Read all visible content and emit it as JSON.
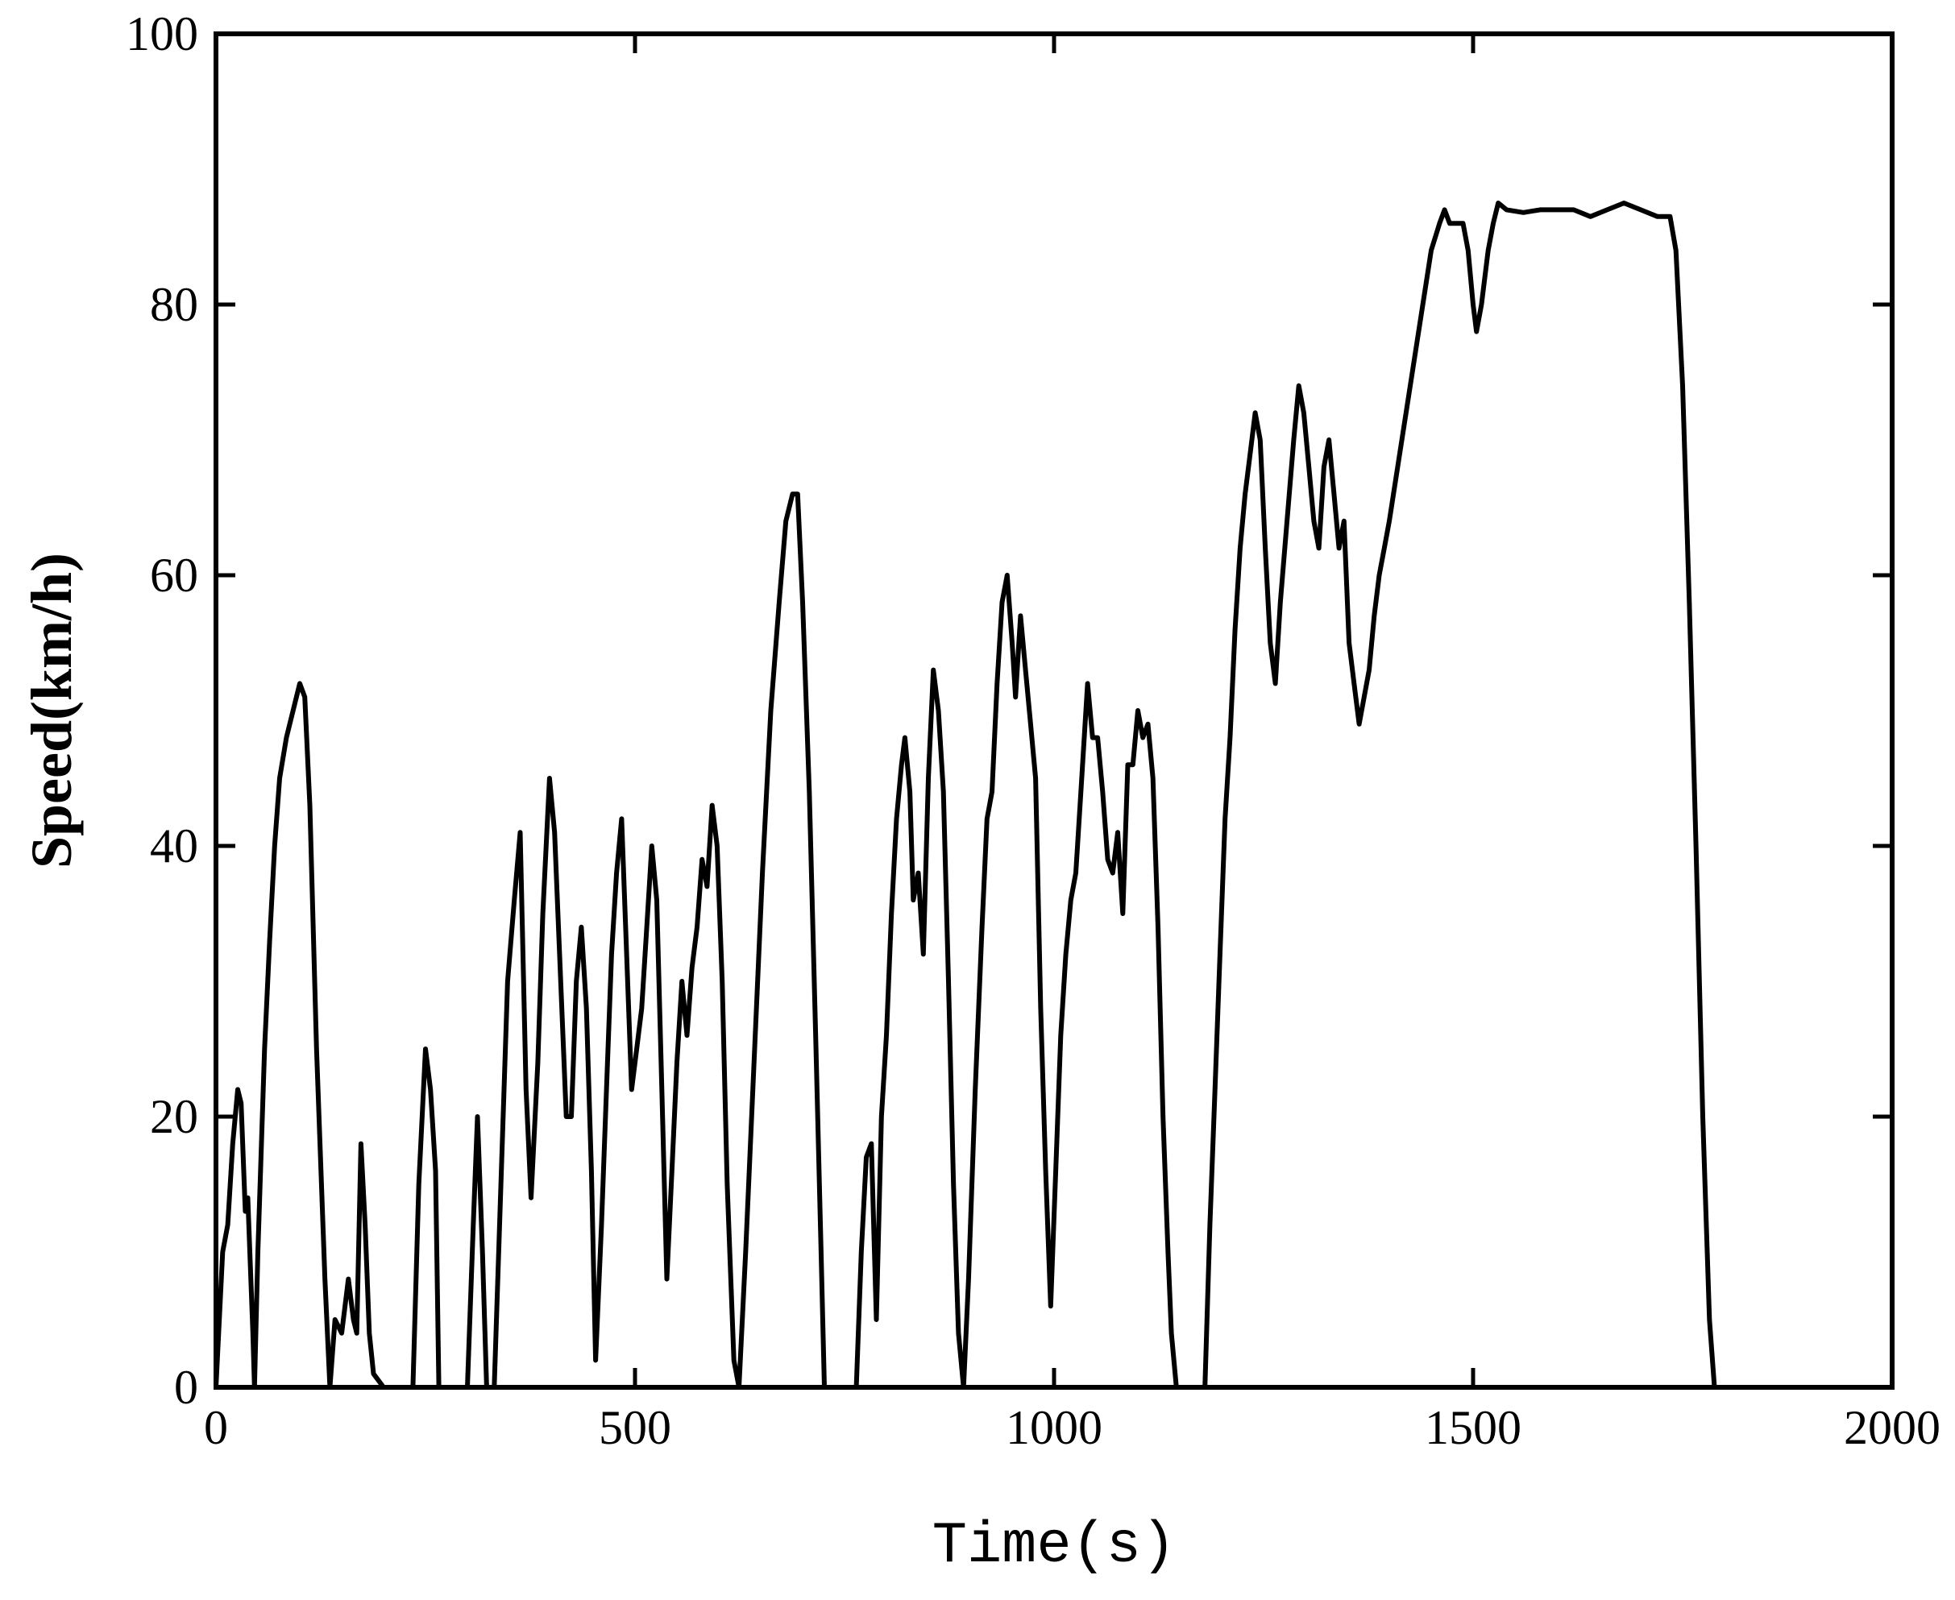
{
  "chart_data": {
    "type": "line",
    "title": "",
    "xlabel": "Time(s)",
    "ylabel": "Speed(km/h)",
    "xlim": [
      0,
      2000
    ],
    "ylim": [
      0,
      100
    ],
    "x_ticks": [
      0,
      500,
      1000,
      1500,
      2000
    ],
    "y_ticks": [
      0,
      20,
      40,
      60,
      80,
      100
    ],
    "x_tick_labels": [
      "0",
      "500",
      "1000",
      "1500",
      "2000"
    ],
    "y_tick_labels": [
      "0",
      "20",
      "40",
      "60",
      "80",
      "100"
    ],
    "grid": false,
    "legend": "none",
    "line_color": "#000000",
    "series": [
      {
        "points": [
          [
            0,
            0
          ],
          [
            8,
            10
          ],
          [
            14,
            12
          ],
          [
            20,
            18
          ],
          [
            26,
            22
          ],
          [
            30,
            21
          ],
          [
            35,
            13
          ],
          [
            38,
            14
          ],
          [
            44,
            4
          ],
          [
            46,
            0
          ],
          [
            50,
            10
          ],
          [
            58,
            25
          ],
          [
            64,
            33
          ],
          [
            70,
            40
          ],
          [
            76,
            45
          ],
          [
            84,
            48
          ],
          [
            92,
            50
          ],
          [
            100,
            52
          ],
          [
            106,
            51
          ],
          [
            112,
            43
          ],
          [
            120,
            25
          ],
          [
            130,
            8
          ],
          [
            136,
            0
          ],
          [
            142,
            5
          ],
          [
            150,
            4
          ],
          [
            158,
            8
          ],
          [
            164,
            5
          ],
          [
            168,
            4
          ],
          [
            173,
            18
          ],
          [
            178,
            12
          ],
          [
            183,
            4
          ],
          [
            188,
            1
          ],
          [
            200,
            0
          ],
          [
            235,
            0
          ],
          [
            242,
            15
          ],
          [
            250,
            25
          ],
          [
            256,
            22
          ],
          [
            262,
            16
          ],
          [
            266,
            0
          ],
          [
            300,
            0
          ],
          [
            307,
            12
          ],
          [
            312,
            20
          ],
          [
            318,
            10
          ],
          [
            323,
            0
          ],
          [
            332,
            0
          ],
          [
            340,
            15
          ],
          [
            348,
            30
          ],
          [
            356,
            36
          ],
          [
            363,
            41
          ],
          [
            370,
            22
          ],
          [
            376,
            14
          ],
          [
            384,
            24
          ],
          [
            390,
            35
          ],
          [
            398,
            45
          ],
          [
            404,
            41
          ],
          [
            410,
            32
          ],
          [
            418,
            20
          ],
          [
            424,
            20
          ],
          [
            430,
            30
          ],
          [
            436,
            34
          ],
          [
            442,
            28
          ],
          [
            448,
            16
          ],
          [
            453,
            2
          ],
          [
            460,
            12
          ],
          [
            466,
            22
          ],
          [
            472,
            32
          ],
          [
            478,
            38
          ],
          [
            484,
            42
          ],
          [
            490,
            32
          ],
          [
            496,
            22
          ],
          [
            502,
            25
          ],
          [
            508,
            28
          ],
          [
            514,
            34
          ],
          [
            520,
            40
          ],
          [
            526,
            36
          ],
          [
            532,
            22
          ],
          [
            538,
            8
          ],
          [
            544,
            16
          ],
          [
            550,
            24
          ],
          [
            556,
            30
          ],
          [
            562,
            26
          ],
          [
            568,
            31
          ],
          [
            574,
            34
          ],
          [
            580,
            39
          ],
          [
            586,
            37
          ],
          [
            592,
            43
          ],
          [
            598,
            40
          ],
          [
            604,
            30
          ],
          [
            610,
            15
          ],
          [
            618,
            2
          ],
          [
            624,
            0
          ],
          [
            632,
            10
          ],
          [
            642,
            24
          ],
          [
            652,
            38
          ],
          [
            662,
            50
          ],
          [
            672,
            58
          ],
          [
            680,
            64
          ],
          [
            688,
            66
          ],
          [
            694,
            66
          ],
          [
            700,
            58
          ],
          [
            708,
            44
          ],
          [
            716,
            25
          ],
          [
            722,
            10
          ],
          [
            726,
            0
          ],
          [
            764,
            0
          ],
          [
            770,
            10
          ],
          [
            776,
            17
          ],
          [
            782,
            18
          ],
          [
            788,
            5
          ],
          [
            794,
            20
          ],
          [
            800,
            26
          ],
          [
            806,
            35
          ],
          [
            812,
            42
          ],
          [
            818,
            46
          ],
          [
            822,
            48
          ],
          [
            828,
            44
          ],
          [
            832,
            36
          ],
          [
            838,
            38
          ],
          [
            844,
            32
          ],
          [
            850,
            45
          ],
          [
            856,
            53
          ],
          [
            862,
            50
          ],
          [
            868,
            44
          ],
          [
            874,
            30
          ],
          [
            880,
            15
          ],
          [
            886,
            4
          ],
          [
            892,
            0
          ],
          [
            898,
            8
          ],
          [
            906,
            22
          ],
          [
            914,
            34
          ],
          [
            920,
            42
          ],
          [
            926,
            44
          ],
          [
            932,
            52
          ],
          [
            938,
            58
          ],
          [
            944,
            60
          ],
          [
            950,
            55
          ],
          [
            954,
            51
          ],
          [
            960,
            57
          ],
          [
            966,
            53
          ],
          [
            972,
            49
          ],
          [
            978,
            45
          ],
          [
            984,
            28
          ],
          [
            990,
            16
          ],
          [
            996,
            6
          ],
          [
            1002,
            16
          ],
          [
            1008,
            26
          ],
          [
            1014,
            32
          ],
          [
            1020,
            36
          ],
          [
            1026,
            38
          ],
          [
            1032,
            44
          ],
          [
            1040,
            52
          ],
          [
            1046,
            48
          ],
          [
            1052,
            48
          ],
          [
            1058,
            44
          ],
          [
            1064,
            39
          ],
          [
            1070,
            38
          ],
          [
            1076,
            41
          ],
          [
            1082,
            35
          ],
          [
            1088,
            46
          ],
          [
            1094,
            46
          ],
          [
            1100,
            50
          ],
          [
            1106,
            48
          ],
          [
            1112,
            49
          ],
          [
            1118,
            45
          ],
          [
            1124,
            34
          ],
          [
            1130,
            20
          ],
          [
            1136,
            10
          ],
          [
            1140,
            4
          ],
          [
            1146,
            0
          ],
          [
            1180,
            0
          ],
          [
            1186,
            12
          ],
          [
            1192,
            22
          ],
          [
            1198,
            32
          ],
          [
            1204,
            42
          ],
          [
            1210,
            48
          ],
          [
            1216,
            56
          ],
          [
            1222,
            62
          ],
          [
            1228,
            66
          ],
          [
            1234,
            69
          ],
          [
            1240,
            72
          ],
          [
            1246,
            70
          ],
          [
            1252,
            62
          ],
          [
            1258,
            55
          ],
          [
            1264,
            52
          ],
          [
            1270,
            58
          ],
          [
            1278,
            64
          ],
          [
            1286,
            70
          ],
          [
            1292,
            74
          ],
          [
            1298,
            72
          ],
          [
            1304,
            68
          ],
          [
            1310,
            64
          ],
          [
            1316,
            62
          ],
          [
            1322,
            68
          ],
          [
            1328,
            70
          ],
          [
            1334,
            66
          ],
          [
            1340,
            62
          ],
          [
            1346,
            64
          ],
          [
            1352,
            55
          ],
          [
            1358,
            52
          ],
          [
            1364,
            49
          ],
          [
            1370,
            51
          ],
          [
            1376,
            53
          ],
          [
            1382,
            57
          ],
          [
            1388,
            60
          ],
          [
            1394,
            62
          ],
          [
            1400,
            64
          ],
          [
            1410,
            68
          ],
          [
            1420,
            72
          ],
          [
            1430,
            76
          ],
          [
            1440,
            80
          ],
          [
            1450,
            84
          ],
          [
            1460,
            86
          ],
          [
            1466,
            87
          ],
          [
            1472,
            86
          ],
          [
            1480,
            86
          ],
          [
            1488,
            86
          ],
          [
            1494,
            84
          ],
          [
            1500,
            80
          ],
          [
            1504,
            78
          ],
          [
            1510,
            80
          ],
          [
            1518,
            84
          ],
          [
            1524,
            86
          ],
          [
            1530,
            87.5
          ],
          [
            1540,
            87
          ],
          [
            1560,
            86.8
          ],
          [
            1580,
            87
          ],
          [
            1600,
            87
          ],
          [
            1620,
            87
          ],
          [
            1640,
            86.5
          ],
          [
            1660,
            87
          ],
          [
            1680,
            87.5
          ],
          [
            1700,
            87
          ],
          [
            1720,
            86.5
          ],
          [
            1735,
            86.5
          ],
          [
            1742,
            84
          ],
          [
            1750,
            74
          ],
          [
            1758,
            58
          ],
          [
            1766,
            40
          ],
          [
            1774,
            20
          ],
          [
            1782,
            5
          ],
          [
            1788,
            0
          ],
          [
            1800,
            0
          ]
        ]
      }
    ]
  }
}
